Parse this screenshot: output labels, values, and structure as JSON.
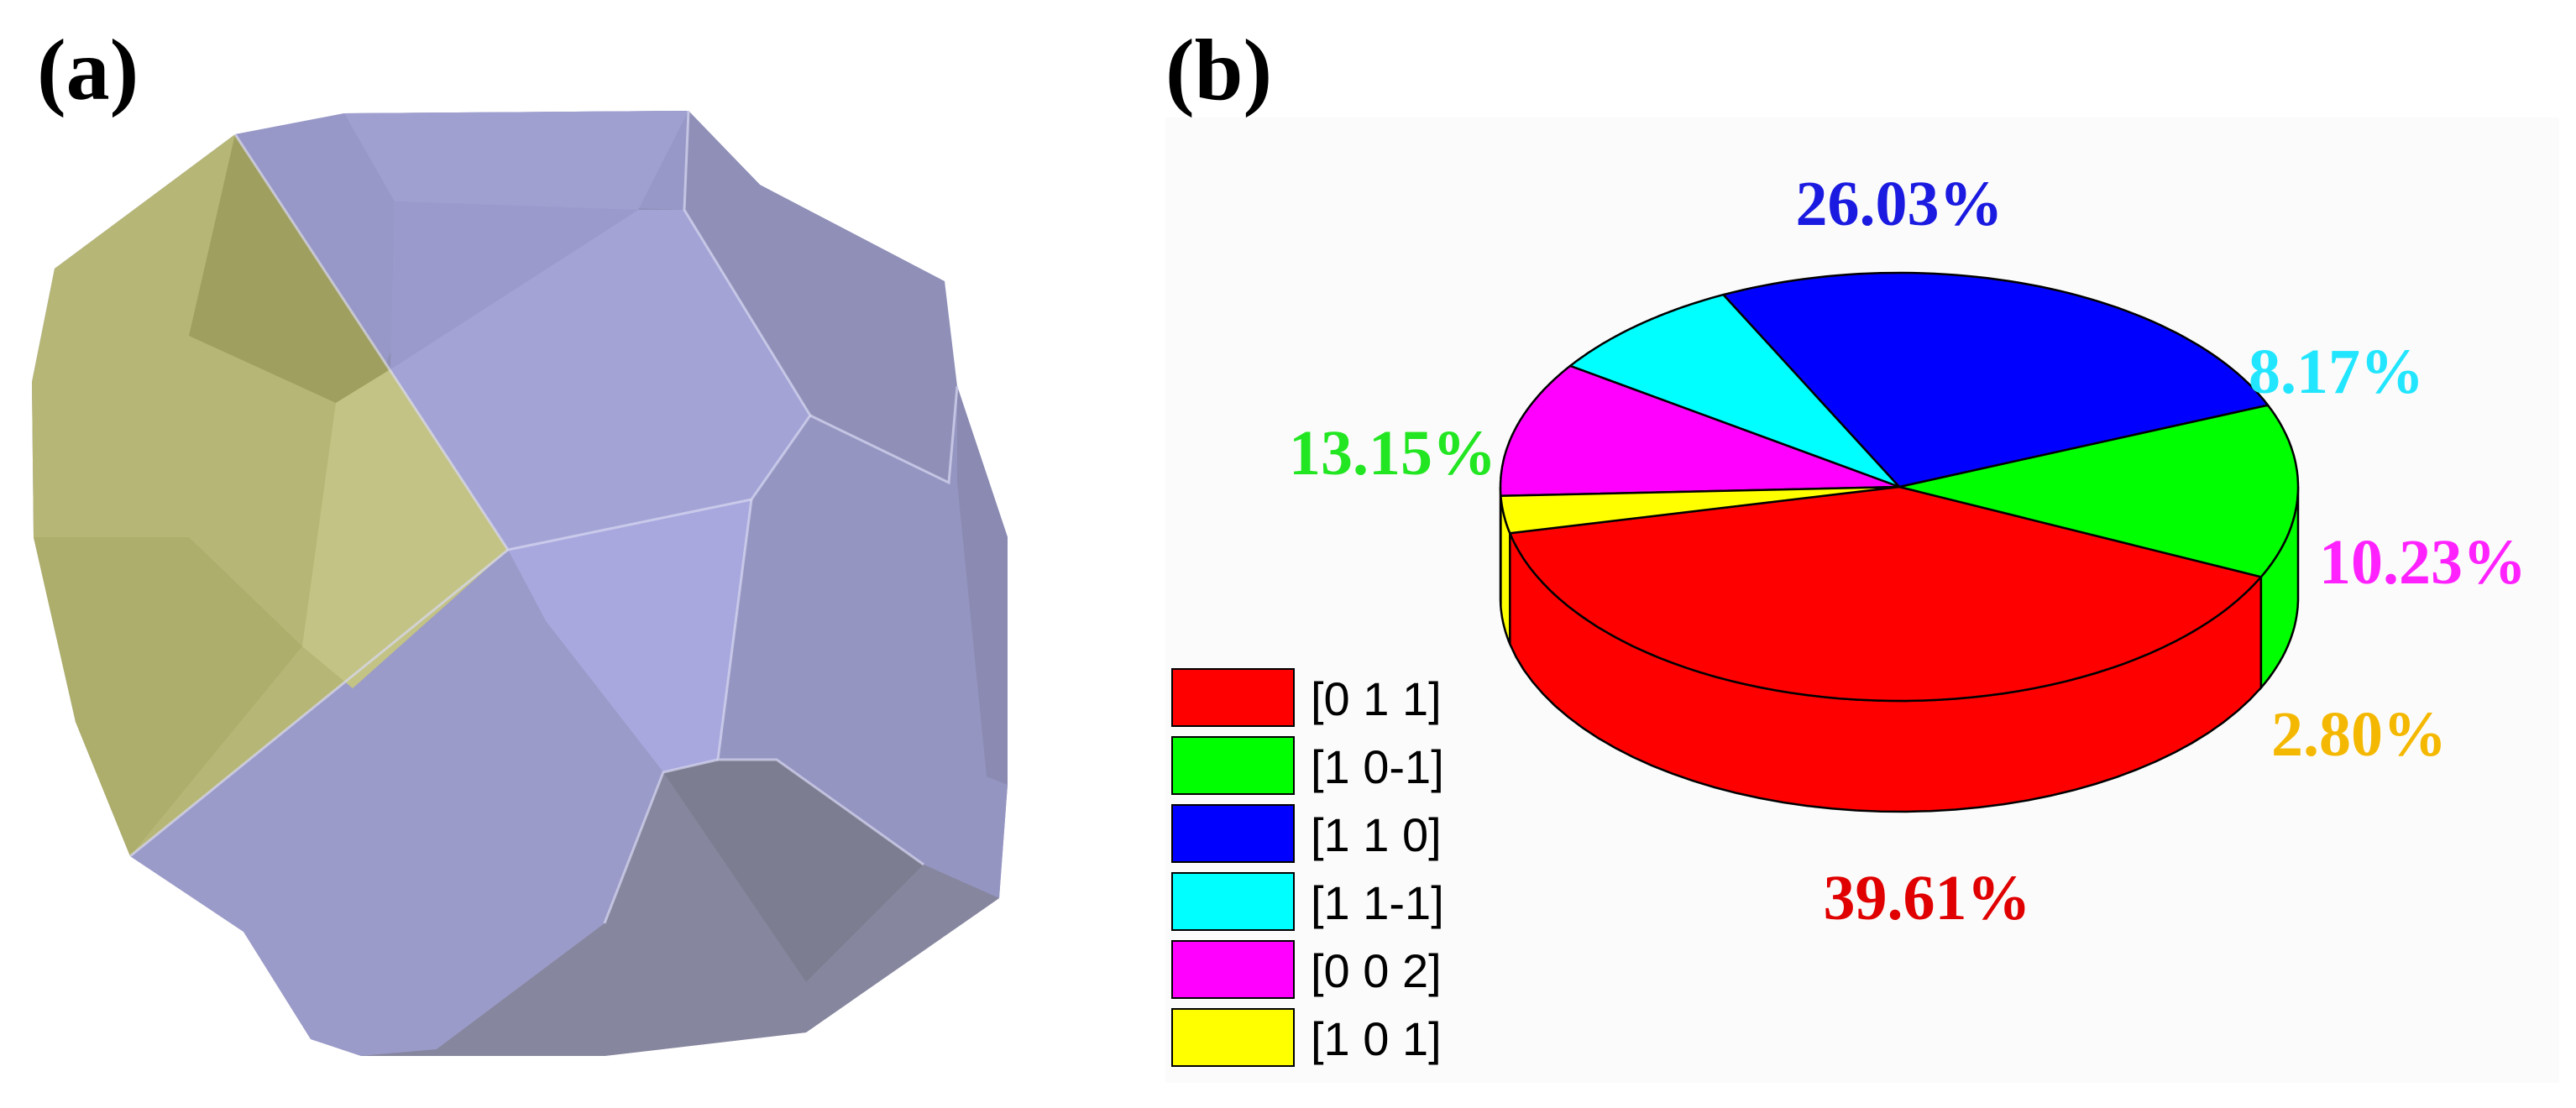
{
  "panels": {
    "a_label": "(a)",
    "b_label": "(b)"
  },
  "colors": {
    "crystal_faces_main": "#9c9ccc",
    "crystal_faces_yellow": "#b8b87a",
    "pie_background": "#fbfbfb"
  },
  "chart_data": {
    "type": "pie",
    "style": "3d",
    "series": [
      {
        "label": "[0 1 1]",
        "value": 39.61,
        "value_label": "39.61%",
        "color": "#ff0000",
        "label_color": "#e00000"
      },
      {
        "label": "[1 0 -1]",
        "value": 13.15,
        "value_label": "13.15%",
        "color": "#00ff00",
        "label_color": "#22e622"
      },
      {
        "label": "[1 1 0]",
        "value": 26.03,
        "value_label": "26.03%",
        "color": "#0000ff",
        "label_color": "#1a1ae0"
      },
      {
        "label": "[1 1 -1]",
        "value": 8.17,
        "value_label": "8.17%",
        "color": "#00ffff",
        "label_color": "#22e6ff"
      },
      {
        "label": "[0 0 2]",
        "value": 10.23,
        "value_label": "10.23%",
        "color": "#ff00ff",
        "label_color": "#ff22ff"
      },
      {
        "label": "[1 0 1]",
        "value": 2.8,
        "value_label": "2.80%",
        "color": "#ffff00",
        "label_color": "#f5b800"
      }
    ],
    "legend_position": "bottom-left",
    "legend_labels": [
      "[0 1 1]",
      "[1 0-1]",
      "[1 1 0]",
      "[1 1-1]",
      "[0 0 2]",
      "[1 0 1]"
    ]
  }
}
